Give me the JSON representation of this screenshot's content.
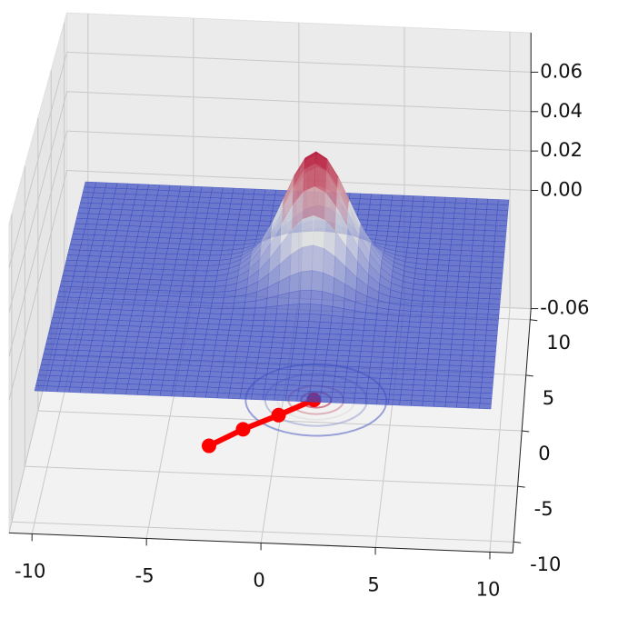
{
  "chart_data": {
    "type": "surface3d",
    "xlim": [
      -11,
      11
    ],
    "ylim": [
      -11,
      11
    ],
    "zlim": [
      -0.06,
      0.08
    ],
    "xticks": [
      -10,
      -5,
      0,
      5,
      10
    ],
    "yticks": [
      -10,
      -5,
      0,
      5,
      10
    ],
    "zticks": [
      -0.06,
      {
        "value": 0,
        "label": "0.00"
      },
      0.02,
      0.04,
      0.06
    ],
    "surface": {
      "center_x": 1.5,
      "center_y": 2,
      "amplitude": 0.06,
      "sigma": 1.5,
      "colormap": "coolwarm"
    },
    "path": {
      "color": "#ff0000",
      "x": [
        -3,
        -1.6,
        -0.1,
        1.4
      ],
      "y": [
        -2.5,
        -0.9,
        0.5,
        2.0
      ]
    },
    "grid": true
  }
}
